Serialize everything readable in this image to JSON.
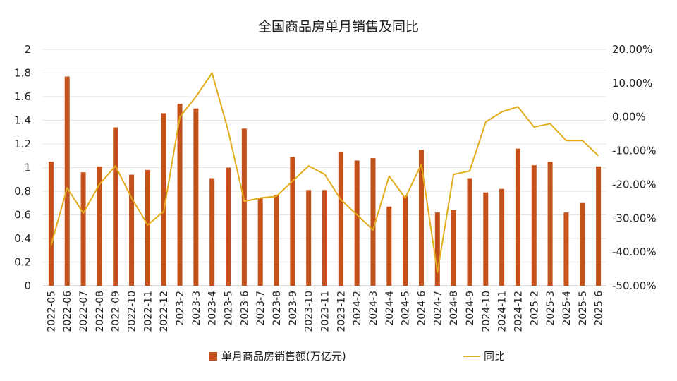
{
  "chart_data": {
    "type": "bar+line",
    "title": "全国商品房单月销售及同比",
    "categories": [
      "2022-05",
      "2022-06",
      "2022-07",
      "2022-08",
      "2022-09",
      "2022-10",
      "2022-11",
      "2022-12",
      "2023-2",
      "2023-3",
      "2023-4",
      "2023-5",
      "2023-6",
      "2023-7",
      "2023-8",
      "2023-9",
      "2023-10",
      "2023-11",
      "2023-12",
      "2024-2",
      "2024-3",
      "2024-4",
      "2024-5",
      "2024-6",
      "2024-7",
      "2024-8",
      "2024-9",
      "2024-10",
      "2024-11",
      "2024-12",
      "2025-2",
      "2025-3",
      "2025-4",
      "2025-5",
      "2025-6"
    ],
    "series": [
      {
        "name": "单月商品房销售额(万亿元)",
        "type": "bar",
        "axis": "left",
        "color": "#C5511A",
        "values": [
          1.05,
          1.77,
          0.96,
          1.01,
          1.34,
          0.94,
          0.98,
          1.46,
          1.54,
          1.5,
          0.91,
          1.0,
          1.33,
          0.74,
          0.77,
          1.09,
          0.81,
          0.81,
          1.13,
          1.06,
          1.08,
          0.67,
          0.76,
          1.15,
          0.62,
          0.64,
          0.91,
          0.79,
          0.82,
          1.16,
          1.02,
          1.05,
          0.62,
          0.7,
          1.01
        ]
      },
      {
        "name": "同比",
        "type": "line",
        "axis": "right",
        "color": "#E2AC1C",
        "values": [
          -38.0,
          -21.0,
          -28.5,
          -20.0,
          -14.5,
          -24.0,
          -32.0,
          -28.0,
          0.0,
          6.0,
          13.0,
          -4.0,
          -25.0,
          -24.0,
          -23.5,
          -19.0,
          -14.5,
          -17.0,
          -24.5,
          -29.0,
          -33.5,
          -17.5,
          -24.0,
          -14.0,
          -46.0,
          -17.0,
          -16.0,
          -1.5,
          1.5,
          3.0,
          -3.0,
          -2.0,
          -7.0,
          -7.0,
          -11.5
        ]
      }
    ],
    "y_left": {
      "min": 0,
      "max": 2,
      "ticks": [
        "0",
        "0.2",
        "0.4",
        "0.6",
        "0.8",
        "1",
        "1.2",
        "1.4",
        "1.6",
        "1.8",
        "2"
      ]
    },
    "y_right": {
      "min": -50,
      "max": 20,
      "ticks": [
        "-50.00%",
        "-40.00%",
        "-30.00%",
        "-20.00%",
        "-10.00%",
        "0.00%",
        "10.00%",
        "20.00%"
      ]
    },
    "gridlines": true,
    "legend_position": "bottom"
  }
}
